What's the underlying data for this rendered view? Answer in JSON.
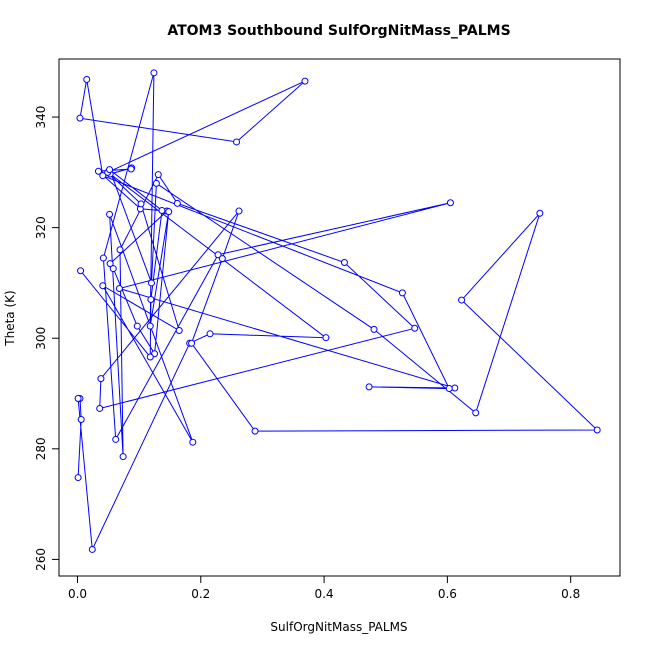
{
  "chart_data": {
    "type": "line",
    "title": "ATOM3 Southbound SulfOrgNitMass_PALMS",
    "xlabel": "SulfOrgNitMass_PALMS",
    "ylabel": "Theta (K)",
    "xlim": [
      -0.03,
      0.88
    ],
    "ylim": [
      257,
      350.5
    ],
    "xticks": [
      0.0,
      0.2,
      0.4,
      0.6,
      0.8
    ],
    "xtick_labels": [
      "0.0",
      "0.2",
      "0.4",
      "0.6",
      "0.8"
    ],
    "yticks": [
      260,
      280,
      300,
      320,
      340
    ],
    "ytick_labels": [
      "260",
      "280",
      "300",
      "320",
      "340"
    ],
    "grid": false,
    "series": [
      {
        "color": "#0000ff",
        "marker": "open-circle",
        "points": [
          [
            0.001,
            274.8
          ],
          [
            0.006,
            285.3
          ],
          [
            0.004,
            289.1
          ],
          [
            0.001,
            289.1
          ],
          [
            0.024,
            261.8
          ],
          [
            0.182,
            299.1
          ],
          [
            0.215,
            300.8
          ],
          [
            0.403,
            300.1
          ],
          [
            0.053,
            329.7
          ],
          [
            0.088,
            330.8
          ],
          [
            0.087,
            330.6
          ],
          [
            0.034,
            330.2
          ],
          [
            0.102,
            323.4
          ],
          [
            0.145,
            323.0
          ],
          [
            0.053,
            313.5
          ],
          [
            0.058,
            312.6
          ],
          [
            0.097,
            302.2
          ],
          [
            0.125,
            297.2
          ],
          [
            0.148,
            322.9
          ],
          [
            0.118,
            302.2
          ],
          [
            0.124,
            348.0
          ],
          [
            0.042,
            314.5
          ],
          [
            0.062,
            281.7
          ],
          [
            0.228,
            315.1
          ],
          [
            0.605,
            324.5
          ],
          [
            0.068,
            309.0
          ],
          [
            0.612,
            291.0
          ],
          [
            0.473,
            291.2
          ],
          [
            0.603,
            290.9
          ],
          [
            0.527,
            308.2
          ],
          [
            0.041,
            329.4
          ],
          [
            0.015,
            346.8
          ],
          [
            0.004,
            339.8
          ],
          [
            0.258,
            335.5
          ],
          [
            0.369,
            346.5
          ],
          [
            0.049,
            330.0
          ],
          [
            0.103,
            324.3
          ],
          [
            0.165,
            301.4
          ],
          [
            0.041,
            309.5
          ],
          [
            0.187,
            281.2
          ],
          [
            0.052,
            322.4
          ],
          [
            0.074,
            278.6
          ],
          [
            0.069,
            316.0
          ],
          [
            0.131,
            329.6
          ],
          [
            0.162,
            324.4
          ],
          [
            0.433,
            313.7
          ],
          [
            0.547,
            301.8
          ],
          [
            0.036,
            287.3
          ],
          [
            0.038,
            292.7
          ],
          [
            0.262,
            323.0
          ],
          [
            0.235,
            314.4
          ],
          [
            0.185,
            299.1
          ],
          [
            0.288,
            283.2
          ],
          [
            0.843,
            283.4
          ],
          [
            0.623,
            306.9
          ],
          [
            0.75,
            322.6
          ],
          [
            0.646,
            286.5
          ],
          [
            0.481,
            301.6
          ],
          [
            0.128,
            328.0
          ],
          [
            0.12,
            310.0
          ],
          [
            0.052,
            330.5
          ],
          [
            0.137,
            323.1
          ],
          [
            0.119,
            307.0
          ],
          [
            0.118,
            296.6
          ],
          [
            0.005,
            312.2
          ]
        ]
      }
    ]
  }
}
